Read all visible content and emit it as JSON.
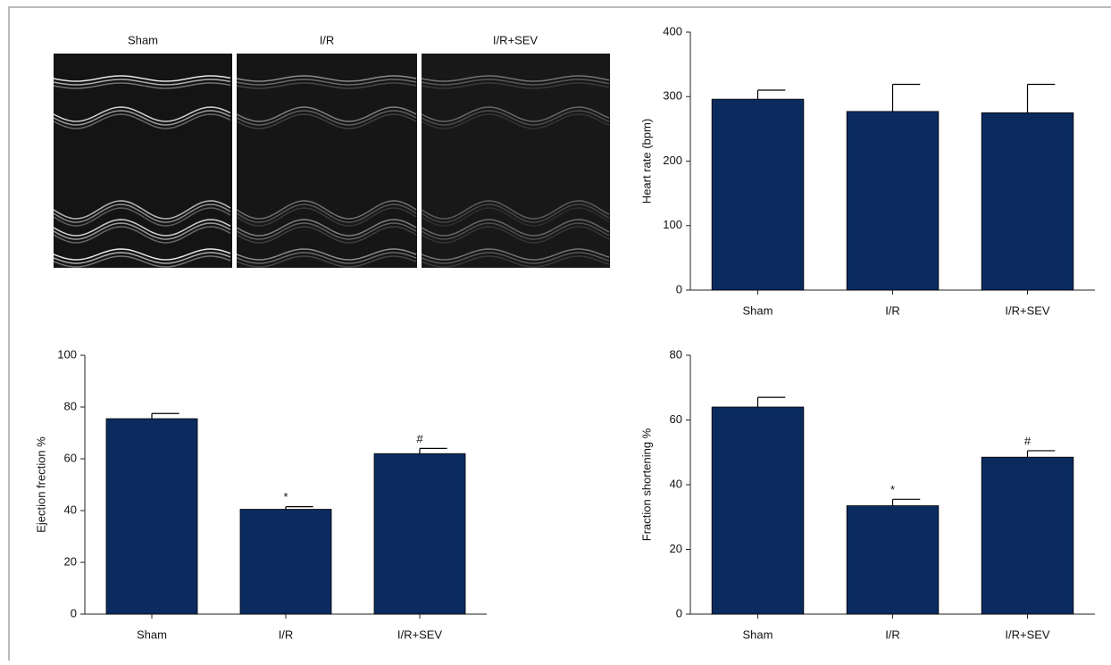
{
  "images": {
    "labels": [
      "Sham",
      "I/R",
      "I/R+SEV"
    ]
  },
  "chart_data": [
    {
      "type": "bar",
      "y_label": "Heart rate (bpm)",
      "categories": [
        "Sham",
        "I/R",
        "I/R+SEV"
      ],
      "values": [
        296,
        277,
        275
      ],
      "errors": [
        14,
        42,
        44
      ],
      "color": "#0b2b5f",
      "ylim": [
        0,
        400
      ],
      "yticks": [
        0,
        100,
        200,
        300,
        400
      ]
    },
    {
      "type": "bar",
      "y_label": "Ejection frection %",
      "categories": [
        "Sham",
        "I/R",
        "I/R+SEV"
      ],
      "values": [
        75.5,
        40.5,
        62
      ],
      "errors": [
        2,
        1,
        2
      ],
      "annotations": [
        null,
        "*",
        "#"
      ],
      "color": "#0b2b5f",
      "ylim": [
        0,
        100
      ],
      "yticks": [
        0,
        20,
        40,
        60,
        80,
        100
      ]
    },
    {
      "type": "bar",
      "y_label": "Fraction shortening %",
      "categories": [
        "Sham",
        "I/R",
        "I/R+SEV"
      ],
      "values": [
        64,
        33.5,
        48.5
      ],
      "errors": [
        3,
        2,
        2
      ],
      "annotations": [
        null,
        "*",
        "#"
      ],
      "color": "#0b2b5f",
      "ylim": [
        0,
        80
      ],
      "yticks": [
        0,
        20,
        40,
        60,
        80
      ]
    }
  ]
}
